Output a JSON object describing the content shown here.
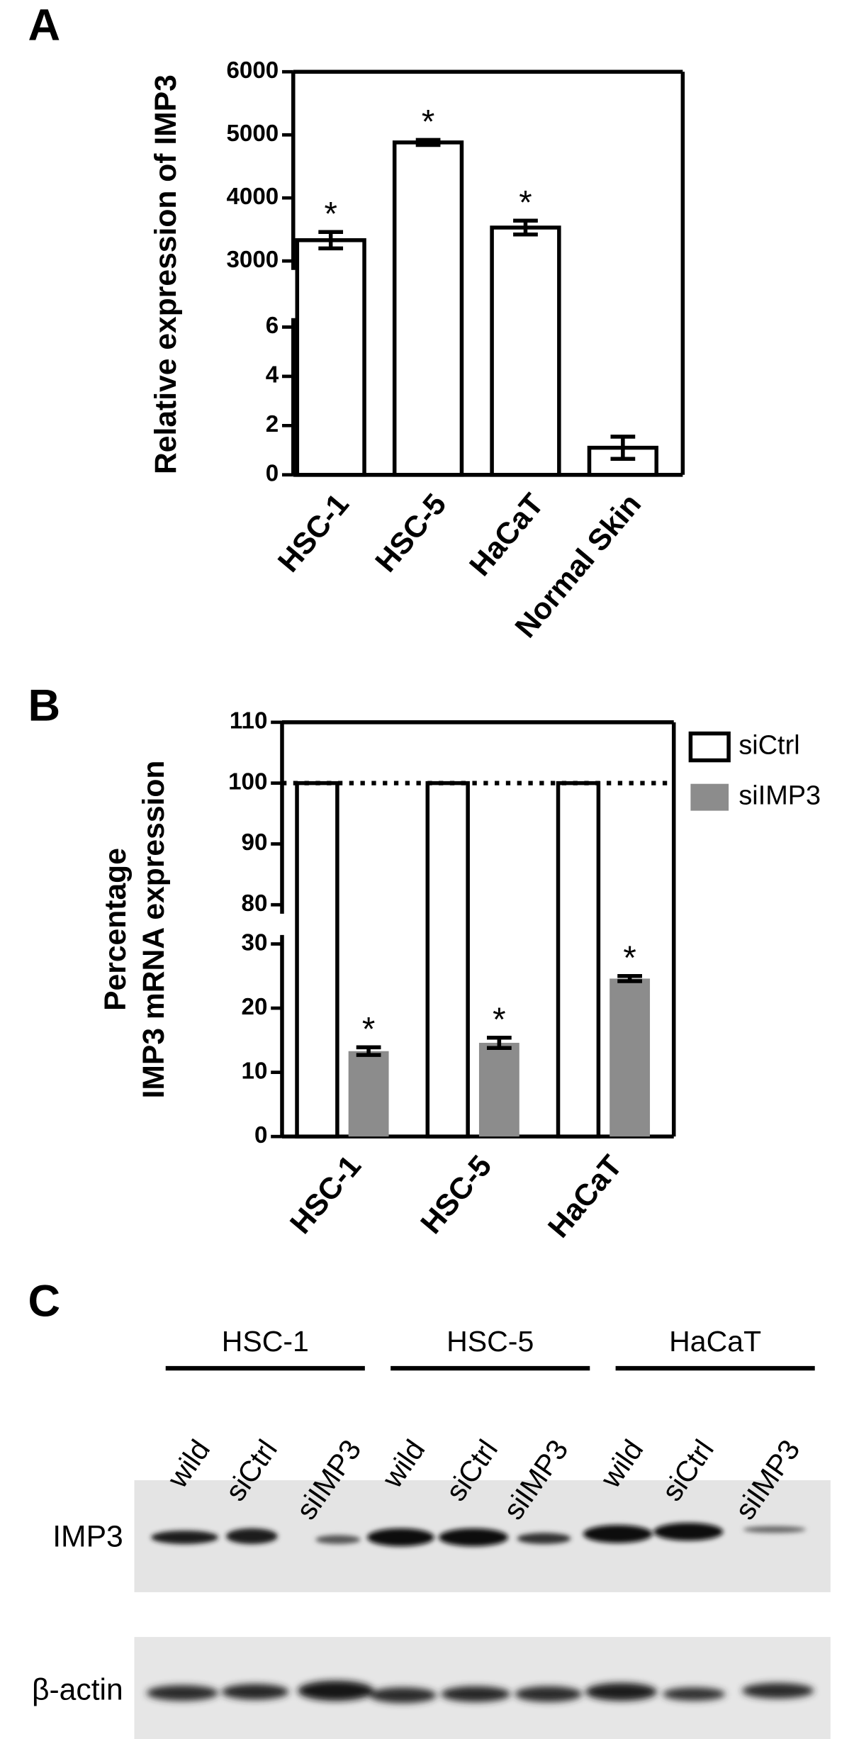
{
  "chart_data": [
    {
      "type": "bar",
      "panel_label": "A",
      "ylabel": [
        "Relative expression of IMP3"
      ],
      "categories": [
        "HSC-1",
        "HSC-5",
        "HaCaT",
        "Normal Skin"
      ],
      "values": [
        3330,
        4880,
        3530,
        1.1
      ],
      "errors": [
        130,
        40,
        110,
        0.45
      ],
      "significance": [
        "*",
        "*",
        "*",
        null
      ],
      "color": "#ffffff",
      "edge_color": "#000000",
      "ylim": [
        0,
        6000
      ],
      "ybreak": [
        6,
        3000
      ],
      "yticks": [
        0,
        2,
        4,
        6,
        3000,
        4000,
        5000,
        6000
      ]
    },
    {
      "type": "grouped-bar",
      "panel_label": "B",
      "ylabel": [
        "Percentage",
        "IMP3 mRNA expression"
      ],
      "categories": [
        "HSC-1",
        "HSC-5",
        "HaCaT"
      ],
      "series": [
        {
          "name": "siCtrl",
          "color": "#ffffff",
          "values": [
            100,
            100,
            100
          ]
        },
        {
          "name": "siIMP3",
          "color": "#8c8c8c",
          "values": [
            13.3,
            14.6,
            24.6
          ],
          "errors": [
            0.6,
            0.8,
            0.4
          ],
          "significance": [
            "*",
            "*",
            "*"
          ]
        }
      ],
      "hline": 100,
      "legend": "right",
      "ylim": [
        0,
        110
      ],
      "ybreak": [
        30,
        80
      ],
      "yticks": [
        0,
        10,
        20,
        30,
        80,
        90,
        100,
        110
      ]
    }
  ],
  "blot": {
    "panel_label": "C",
    "groups": [
      {
        "label": "HSC-1",
        "lanes": [
          "wild",
          "siCtrl",
          "siIMP3"
        ]
      },
      {
        "label": "HSC-5",
        "lanes": [
          "wild",
          "siCtrl",
          "siIMP3"
        ]
      },
      {
        "label": "HaCaT",
        "lanes": [
          "wild",
          "siCtrl",
          "siIMP3"
        ]
      }
    ],
    "rows": [
      "IMP3",
      "β-actin"
    ]
  }
}
